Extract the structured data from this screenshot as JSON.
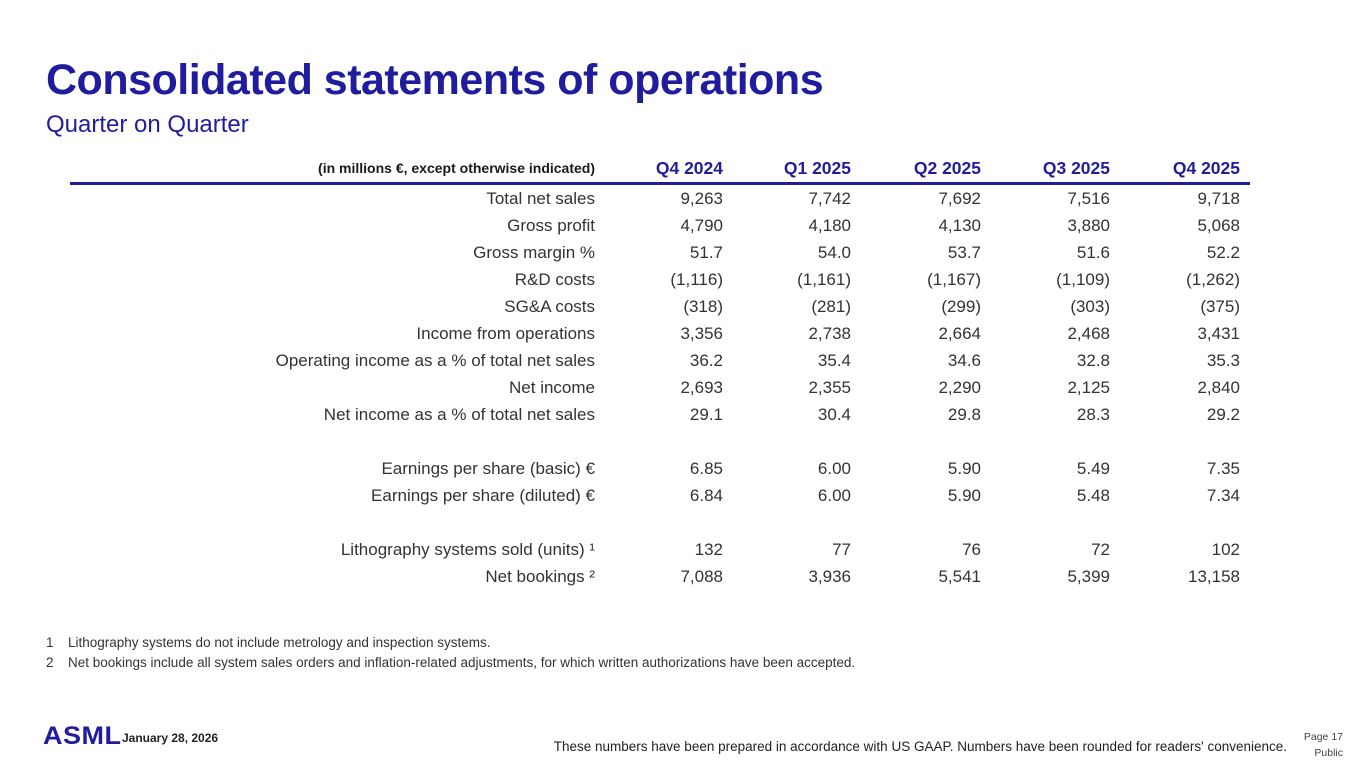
{
  "slide": {
    "title": "Consolidated statements of operations",
    "subtitle": "Quarter on Quarter"
  },
  "table": {
    "unit_label": "(in millions €, except otherwise indicated)",
    "columns": [
      "Q4 2024",
      "Q1 2025",
      "Q2 2025",
      "Q3 2025",
      "Q4 2025"
    ],
    "rows": [
      {
        "label": "Total net sales",
        "values": [
          "9,263",
          "7,742",
          "7,692",
          "7,516",
          "9,718"
        ]
      },
      {
        "label": "Gross profit",
        "values": [
          "4,790",
          "4,180",
          "4,130",
          "3,880",
          "5,068"
        ]
      },
      {
        "label": "Gross margin %",
        "values": [
          "51.7",
          "54.0",
          "53.7",
          "51.6",
          "52.2"
        ]
      },
      {
        "label": "R&D costs",
        "values": [
          "(1,116)",
          "(1,161)",
          "(1,167)",
          "(1,109)",
          "(1,262)"
        ]
      },
      {
        "label": "SG&A costs",
        "values": [
          "(318)",
          "(281)",
          "(299)",
          "(303)",
          "(375)"
        ]
      },
      {
        "label": "Income from operations",
        "values": [
          "3,356",
          "2,738",
          "2,664",
          "2,468",
          "3,431"
        ]
      },
      {
        "label": "Operating income as a % of total net sales",
        "values": [
          "36.2",
          "35.4",
          "34.6",
          "32.8",
          "35.3"
        ]
      },
      {
        "label": "Net income",
        "values": [
          "2,693",
          "2,355",
          "2,290",
          "2,125",
          "2,840"
        ]
      },
      {
        "label": "Net income as a % of total net sales",
        "values": [
          "29.1",
          "30.4",
          "29.8",
          "28.3",
          "29.2"
        ]
      },
      {
        "spacer": true
      },
      {
        "label": "Earnings per share (basic) €",
        "values": [
          "6.85",
          "6.00",
          "5.90",
          "5.49",
          "7.35"
        ]
      },
      {
        "label": "Earnings per share (diluted) €",
        "values": [
          "6.84",
          "6.00",
          "5.90",
          "5.48",
          "7.34"
        ]
      },
      {
        "spacer": true
      },
      {
        "label": "Lithography systems sold (units) ¹",
        "values": [
          "132",
          "77",
          "76",
          "72",
          "102"
        ]
      },
      {
        "label": "Net bookings ²",
        "values": [
          "7,088",
          "3,936",
          "5,541",
          "5,399",
          "13,158"
        ]
      }
    ]
  },
  "footnotes": [
    {
      "num": "1",
      "text": "Lithography systems do not include metrology and inspection systems."
    },
    {
      "num": "2",
      "text": "Net bookings include all system sales orders and inflation-related adjustments, for which written authorizations have been accepted."
    }
  ],
  "footer": {
    "logo": "ASML",
    "date": "January 28, 2026",
    "disclaimer": "These numbers have been prepared in accordance with US GAAP.  Numbers have been rounded for readers' convenience.",
    "page": "Page 17",
    "classification": "Public"
  },
  "colors": {
    "brand_navy": "#201c9e",
    "body_text": "#333333"
  }
}
